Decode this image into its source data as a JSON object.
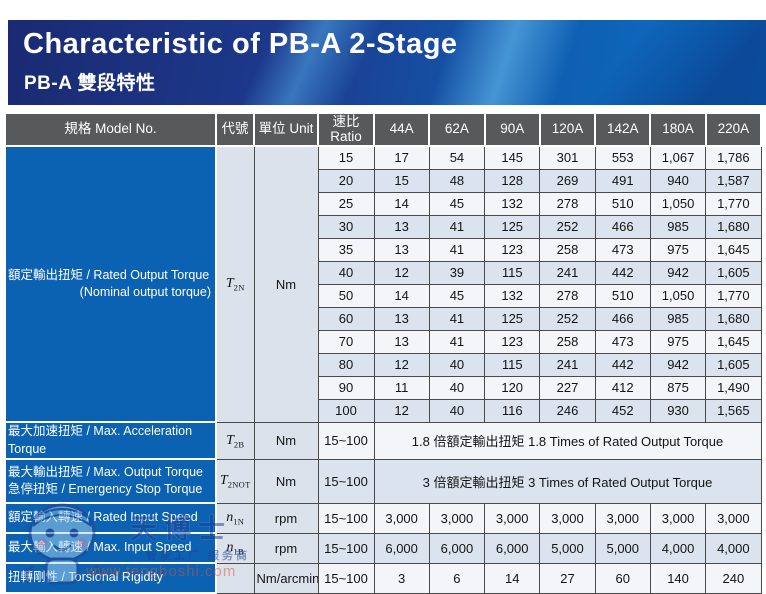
{
  "banner": {
    "title": "Characteristic of PB-A 2-Stage",
    "subtitle": "PB-A 雙段特性"
  },
  "colors": {
    "header_gray": "#58595b",
    "label_blue": "#0c62b2",
    "row_white": "#f3f5f9",
    "row_blue": "#dbe3ee",
    "code_unit_bg": "#dbe2ec",
    "banner_navy": "#1a2a72",
    "banner_bright_blue": "#0c70c6"
  },
  "table": {
    "headers": {
      "model": "規格 Model No.",
      "code": "代號",
      "unit": "單位 Unit",
      "ratio_line1": "速比",
      "ratio_line2": "Ratio",
      "models": [
        "44A",
        "62A",
        "90A",
        "120A",
        "142A",
        "180A",
        "220A"
      ]
    },
    "rated_output": {
      "label_line1": "額定輸出扭矩 / Rated Output Torque",
      "label_line2": "(Nominal output torque)",
      "code_base": "T",
      "code_sub": "2N",
      "unit": "Nm",
      "rows": [
        {
          "ratio": "15",
          "values": [
            "17",
            "54",
            "145",
            "301",
            "553",
            "1,067",
            "1,786"
          ]
        },
        {
          "ratio": "20",
          "values": [
            "15",
            "48",
            "128",
            "269",
            "491",
            "940",
            "1,587"
          ]
        },
        {
          "ratio": "25",
          "values": [
            "14",
            "45",
            "132",
            "278",
            "510",
            "1,050",
            "1,770"
          ]
        },
        {
          "ratio": "30",
          "values": [
            "13",
            "41",
            "125",
            "252",
            "466",
            "985",
            "1,680"
          ]
        },
        {
          "ratio": "35",
          "values": [
            "13",
            "41",
            "123",
            "258",
            "473",
            "975",
            "1,645"
          ]
        },
        {
          "ratio": "40",
          "values": [
            "12",
            "39",
            "115",
            "241",
            "442",
            "942",
            "1,605"
          ]
        },
        {
          "ratio": "50",
          "values": [
            "14",
            "45",
            "132",
            "278",
            "510",
            "1,050",
            "1,770"
          ]
        },
        {
          "ratio": "60",
          "values": [
            "13",
            "41",
            "125",
            "252",
            "466",
            "985",
            "1,680"
          ]
        },
        {
          "ratio": "70",
          "values": [
            "13",
            "41",
            "123",
            "258",
            "473",
            "975",
            "1,645"
          ]
        },
        {
          "ratio": "80",
          "values": [
            "12",
            "40",
            "115",
            "241",
            "442",
            "942",
            "1,605"
          ]
        },
        {
          "ratio": "90",
          "values": [
            "11",
            "40",
            "120",
            "227",
            "412",
            "875",
            "1,490"
          ]
        },
        {
          "ratio": "100",
          "values": [
            "12",
            "40",
            "116",
            "246",
            "452",
            "930",
            "1,565"
          ]
        }
      ]
    },
    "sections": [
      {
        "label_line1": "最大加速扭矩 / Max. Acceleration Torque",
        "code_base": "T",
        "code_sub": "2B",
        "unit": "Nm",
        "ratio": "15~100",
        "merged": "1.8 倍額定輸出扭矩  1.8 Times of Rated Output Torque"
      },
      {
        "label_line1": "最大輸出扭矩 / Max. Output Torque",
        "label_line2": "急停扭矩 / Emergency Stop Torque",
        "code_base": "T",
        "code_sub": "2NOT",
        "unit": "Nm",
        "ratio": "15~100",
        "merged": "3 倍額定輸出扭矩  3 Times of Rated Output Torque"
      },
      {
        "label_line1": "額定輸入轉速 / Rated Input Speed",
        "code_base": "n",
        "code_sub": "1N",
        "unit": "rpm",
        "ratio": "15~100",
        "values": [
          "3,000",
          "3,000",
          "3,000",
          "3,000",
          "3,000",
          "3,000",
          "3,000"
        ]
      },
      {
        "label_line1": "最大輸入轉速 / Max. Input Speed",
        "code_base": "n",
        "code_sub": "1B",
        "unit": "rpm",
        "ratio": "15~100",
        "values": [
          "6,000",
          "6,000",
          "6,000",
          "5,000",
          "5,000",
          "4,000",
          "4,000"
        ]
      },
      {
        "label_line1": "扭轉剛性 / Torsional Rigidity",
        "code_base": "",
        "code_sub": "",
        "unit": "Nm/arcmin",
        "ratio": "15~100",
        "values": [
          "3",
          "6",
          "14",
          "27",
          "60",
          "140",
          "240"
        ]
      }
    ]
  },
  "watermark": {
    "name": "天博士",
    "tagline": "智能工厂 服务商",
    "url": "www.tengboshi.com"
  }
}
